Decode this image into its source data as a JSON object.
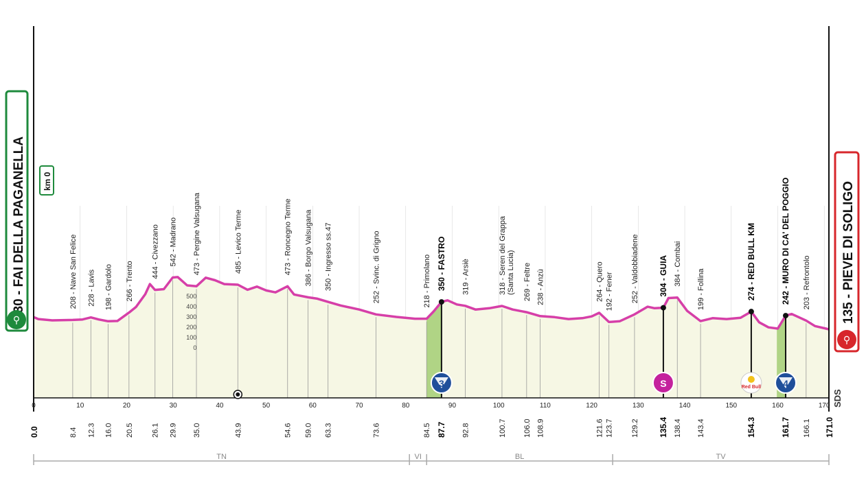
{
  "stage": {
    "start": {
      "label": "230 - FAI DELLA PAGANELLA",
      "color": "#1e8a3c"
    },
    "finish": {
      "label": "135 - PIEVE DI SOLIGO",
      "color": "#d7262b"
    },
    "km0_label": "km 0",
    "sds_label": "SDS"
  },
  "chart_data": {
    "type": "area",
    "title": "",
    "xlabel": "",
    "ylabel": "",
    "xlim": [
      0,
      171
    ],
    "ylim": [
      0,
      600
    ],
    "grid": true,
    "x_ticks": [
      0,
      10,
      20,
      30,
      40,
      50,
      60,
      70,
      80,
      90,
      100,
      110,
      120,
      130,
      140,
      150,
      160,
      170
    ],
    "elevation_ticks": [
      0,
      100,
      200,
      300,
      400,
      500
    ],
    "profile": [
      [
        0,
        230
      ],
      [
        1,
        215
      ],
      [
        4,
        205
      ],
      [
        8.4,
        208
      ],
      [
        10.5,
        212
      ],
      [
        12.3,
        228
      ],
      [
        14,
        212
      ],
      [
        16,
        198
      ],
      [
        18,
        200
      ],
      [
        20.5,
        266
      ],
      [
        22,
        310
      ],
      [
        24,
        410
      ],
      [
        25,
        490
      ],
      [
        26.1,
        444
      ],
      [
        28,
        450
      ],
      [
        29.9,
        542
      ],
      [
        31,
        545
      ],
      [
        33,
        480
      ],
      [
        35,
        473
      ],
      [
        37,
        540
      ],
      [
        39,
        520
      ],
      [
        41,
        490
      ],
      [
        43.9,
        485
      ],
      [
        46,
        445
      ],
      [
        48,
        470
      ],
      [
        50,
        440
      ],
      [
        52,
        425
      ],
      [
        54.6,
        473
      ],
      [
        56,
        408
      ],
      [
        59,
        386
      ],
      [
        61,
        375
      ],
      [
        63.3,
        350
      ],
      [
        66,
        322
      ],
      [
        70,
        290
      ],
      [
        73.6,
        252
      ],
      [
        78,
        232
      ],
      [
        82,
        218
      ],
      [
        84.5,
        218
      ],
      [
        86,
        275
      ],
      [
        87.7,
        350
      ],
      [
        89,
        362
      ],
      [
        91,
        330
      ],
      [
        92.8,
        319
      ],
      [
        95,
        290
      ],
      [
        98,
        300
      ],
      [
        100.7,
        318
      ],
      [
        103,
        290
      ],
      [
        106,
        269
      ],
      [
        108.9,
        238
      ],
      [
        112,
        230
      ],
      [
        115,
        215
      ],
      [
        118,
        222
      ],
      [
        120,
        236
      ],
      [
        121.6,
        264
      ],
      [
        123.7,
        192
      ],
      [
        126,
        198
      ],
      [
        129.2,
        252
      ],
      [
        132,
        312
      ],
      [
        133.5,
        300
      ],
      [
        135.4,
        304
      ],
      [
        136.5,
        380
      ],
      [
        138.4,
        384
      ],
      [
        140.5,
        280
      ],
      [
        143.4,
        199
      ],
      [
        146,
        222
      ],
      [
        149,
        215
      ],
      [
        152,
        225
      ],
      [
        154.3,
        274
      ],
      [
        156,
        190
      ],
      [
        158,
        150
      ],
      [
        160,
        140
      ],
      [
        161.7,
        242
      ],
      [
        163,
        255
      ],
      [
        166.1,
        203
      ],
      [
        168,
        160
      ],
      [
        171,
        135
      ]
    ],
    "climb_segments": [
      {
        "from_km": 84.5,
        "to_km": 87.7
      },
      {
        "from_km": 159.8,
        "to_km": 161.7
      }
    ],
    "waypoints": [
      {
        "km": 8.4,
        "km_label": "8.4",
        "name": "208 - Nave San Felice",
        "elev": 208,
        "bold": false
      },
      {
        "km": 12.3,
        "km_label": "12.3",
        "name": "228 - Lavis",
        "elev": 228,
        "bold": false
      },
      {
        "km": 16.0,
        "km_label": "16.0",
        "name": "198 - Gardolo",
        "elev": 198,
        "bold": false
      },
      {
        "km": 20.5,
        "km_label": "20.5",
        "name": "266 - Trento",
        "elev": 266,
        "bold": false
      },
      {
        "km": 26.1,
        "km_label": "26.1",
        "name": "444 - Civezzano",
        "elev": 444,
        "bold": false
      },
      {
        "km": 29.9,
        "km_label": "29.9",
        "name": "542 - Madrano",
        "elev": 542,
        "bold": false
      },
      {
        "km": 35.0,
        "km_label": "35.0",
        "name": "473 - Pergine Valsugana",
        "elev": 473,
        "bold": false
      },
      {
        "km": 43.9,
        "km_label": "43.9",
        "name": "485 - Levico Terme",
        "elev": 485,
        "bold": false
      },
      {
        "km": 54.6,
        "km_label": "54.6",
        "name": "473 - Roncegno Terme",
        "elev": 473,
        "bold": false
      },
      {
        "km": 59.0,
        "km_label": "59.0",
        "name": "386 - Borgo Valsugana",
        "elev": 386,
        "bold": false
      },
      {
        "km": 63.3,
        "km_label": "63.3",
        "name": "350 - Ingresso ss.47",
        "elev": 350,
        "bold": false
      },
      {
        "km": 73.6,
        "km_label": "73.6",
        "name": "252 - Svinc. di Grigno",
        "elev": 252,
        "bold": false
      },
      {
        "km": 84.5,
        "km_label": "84.5",
        "name": "218 - Primolano",
        "elev": 218,
        "bold": false
      },
      {
        "km": 87.7,
        "km_label": "87.7",
        "name": "350 - FASTRO",
        "elev": 350,
        "bold": true
      },
      {
        "km": 92.8,
        "km_label": "92.8",
        "name": "319 - Arsiè",
        "elev": 319,
        "bold": false
      },
      {
        "km": 100.7,
        "km_label": "100.7",
        "name": "318 - Seren del Grappa",
        "name2": "(Santa Lucia)",
        "elev": 318,
        "bold": false
      },
      {
        "km": 106.0,
        "km_label": "106.0",
        "name": "269 - Feltre",
        "elev": 269,
        "bold": false
      },
      {
        "km": 108.9,
        "km_label": "108.9",
        "name": "238 - Anzù",
        "elev": 238,
        "bold": false
      },
      {
        "km": 121.6,
        "km_label": "121.6",
        "name": "264 - Quero",
        "elev": 264,
        "bold": false
      },
      {
        "km": 123.7,
        "km_label": "123.7",
        "name": "192 - Fener",
        "elev": 192,
        "bold": false
      },
      {
        "km": 129.2,
        "km_label": "129.2",
        "name": "252 - Valdobbiadene",
        "elev": 252,
        "bold": false
      },
      {
        "km": 135.4,
        "km_label": "135.4",
        "name": "304 - GUIA",
        "elev": 304,
        "bold": true
      },
      {
        "km": 138.4,
        "km_label": "138.4",
        "name": "384 - Combai",
        "elev": 384,
        "bold": false
      },
      {
        "km": 143.4,
        "km_label": "143.4",
        "name": "199 - Follina",
        "elev": 199,
        "bold": false
      },
      {
        "km": 154.3,
        "km_label": "154.3",
        "name": "274 - RED BULL KM",
        "elev": 274,
        "bold": true
      },
      {
        "km": 161.7,
        "km_label": "161.7",
        "name": "242 - MURO DI CA' DEL POGGIO",
        "elev": 242,
        "bold": true
      },
      {
        "km": 166.1,
        "km_label": "166.1",
        "name": "203 - Refrontolo",
        "elev": 203,
        "bold": false
      }
    ],
    "start_km_label": "0.0",
    "finish_km_label": "171.0",
    "climbs": [
      {
        "km": 87.7,
        "label": "3",
        "type": "gpm",
        "color": "#1f4f9a"
      },
      {
        "km": 135.4,
        "label": "S",
        "type": "sprint",
        "color": "#c4229d"
      },
      {
        "km": 154.3,
        "label": "Red Bull",
        "type": "redbull",
        "color": "#d7262b"
      },
      {
        "km": 161.7,
        "label": "4",
        "type": "gpm",
        "color": "#1f4f9a"
      }
    ],
    "feed_zone_km": 43.9,
    "regions": [
      {
        "label": "TN",
        "from_km": 0,
        "to_km": 80.8
      },
      {
        "label": "VI",
        "from_km": 80.8,
        "to_km": 84.5
      },
      {
        "label": "BL",
        "from_km": 84.5,
        "to_km": 124.5
      },
      {
        "label": "TV",
        "from_km": 124.5,
        "to_km": 171
      }
    ],
    "colors": {
      "line": "#d63fa8",
      "fill": "#f6f7e4",
      "climb_fill": "#a9cf7a",
      "grid": "#cccccc"
    }
  }
}
